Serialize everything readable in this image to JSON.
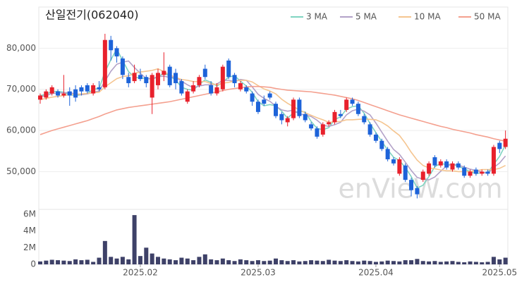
{
  "chart_data": [
    {
      "type": "candlestick",
      "title": "산일전기(062040)",
      "watermark": "enVieW.com",
      "up_color": "#e8212c",
      "down_color": "#1d63d9",
      "ylim": [
        41000,
        90000
      ],
      "yticks": [
        {
          "value": 50000,
          "label": "50,000"
        },
        {
          "value": 60000,
          "label": "60,000"
        },
        {
          "value": 70000,
          "label": "70,000"
        },
        {
          "value": 80000,
          "label": "80,000"
        }
      ],
      "grid": true,
      "ohlc": [
        [
          67500,
          69000,
          66500,
          68500
        ],
        [
          68000,
          70000,
          67500,
          69500
        ],
        [
          69000,
          71000,
          68500,
          70500
        ],
        [
          69500,
          70000,
          68000,
          68500
        ],
        [
          68500,
          73500,
          68000,
          69000
        ],
        [
          69500,
          70500,
          66000,
          68500
        ],
        [
          70000,
          71000,
          67000,
          68000
        ],
        [
          70500,
          71000,
          68500,
          69500
        ],
        [
          71000,
          71500,
          69000,
          69500
        ],
        [
          69000,
          71500,
          68500,
          71000
        ],
        [
          70500,
          72000,
          69500,
          70000
        ],
        [
          70500,
          83500,
          70000,
          82000
        ],
        [
          82000,
          83000,
          77000,
          79500
        ],
        [
          80000,
          80500,
          76500,
          78000
        ],
        [
          77500,
          78000,
          72500,
          73500
        ],
        [
          73000,
          74000,
          70500,
          71500
        ],
        [
          72000,
          76000,
          71500,
          74000
        ],
        [
          73500,
          75000,
          72000,
          72500
        ],
        [
          73000,
          73500,
          70500,
          71500
        ],
        [
          68000,
          74000,
          64000,
          73500
        ],
        [
          71000,
          75000,
          70000,
          74000
        ],
        [
          73500,
          79000,
          72000,
          74500
        ],
        [
          75500,
          76000,
          70500,
          71000
        ],
        [
          74000,
          75000,
          70000,
          71500
        ],
        [
          72000,
          72500,
          68500,
          69000
        ],
        [
          67000,
          70000,
          66500,
          69500
        ],
        [
          69500,
          72000,
          69000,
          71000
        ],
        [
          71000,
          73500,
          70500,
          73000
        ],
        [
          75000,
          76000,
          72500,
          73000
        ],
        [
          71000,
          72000,
          68500,
          69000
        ],
        [
          69000,
          71500,
          68500,
          70500
        ],
        [
          70000,
          76000,
          69500,
          75500
        ],
        [
          77000,
          77500,
          72500,
          73000
        ],
        [
          73500,
          74000,
          70500,
          71500
        ],
        [
          70000,
          72000,
          69500,
          71500
        ],
        [
          70500,
          71000,
          69000,
          69500
        ],
        [
          69000,
          69500,
          66000,
          67000
        ],
        [
          67000,
          67500,
          64000,
          64500
        ],
        [
          67500,
          68500,
          66000,
          66500
        ],
        [
          69000,
          69500,
          67500,
          68000
        ],
        [
          66500,
          67000,
          63000,
          63500
        ],
        [
          64000,
          64500,
          61500,
          62500
        ],
        [
          62000,
          63500,
          61000,
          63000
        ],
        [
          63000,
          68000,
          62500,
          67500
        ],
        [
          67500,
          68000,
          63000,
          63500
        ],
        [
          64000,
          64500,
          62000,
          62500
        ],
        [
          61500,
          62000,
          60000,
          60500
        ],
        [
          60500,
          61000,
          58000,
          58500
        ],
        [
          59000,
          62000,
          58500,
          61500
        ],
        [
          61500,
          62500,
          61000,
          62000
        ],
        [
          62000,
          65000,
          61500,
          64500
        ],
        [
          64000,
          65000,
          63000,
          63500
        ],
        [
          65000,
          68000,
          64500,
          67500
        ],
        [
          67500,
          68000,
          66000,
          66500
        ],
        [
          66500,
          67000,
          63500,
          64000
        ],
        [
          63500,
          64000,
          61500,
          62000
        ],
        [
          61500,
          62000,
          58500,
          59000
        ],
        [
          59000,
          59500,
          57000,
          57500
        ],
        [
          57500,
          58000,
          55000,
          55500
        ],
        [
          55500,
          56000,
          52500,
          53000
        ],
        [
          53000,
          53500,
          51500,
          52000
        ],
        [
          49500,
          53500,
          49000,
          53000
        ],
        [
          51500,
          52000,
          47500,
          48000
        ],
        [
          48000,
          48500,
          44000,
          45500
        ],
        [
          46000,
          46500,
          43500,
          44500
        ],
        [
          48000,
          50500,
          47500,
          50000
        ],
        [
          49500,
          52500,
          49000,
          52000
        ],
        [
          53500,
          54000,
          51000,
          51500
        ],
        [
          51500,
          53000,
          51000,
          52500
        ],
        [
          52500,
          53000,
          50500,
          51000
        ],
        [
          50500,
          52500,
          50000,
          52000
        ],
        [
          52000,
          52500,
          50500,
          51000
        ],
        [
          51000,
          51500,
          48500,
          49000
        ],
        [
          49000,
          50500,
          48500,
          50000
        ],
        [
          50500,
          51000,
          49000,
          49500
        ],
        [
          49500,
          50500,
          49000,
          50000
        ],
        [
          50000,
          50500,
          49000,
          49500
        ],
        [
          49500,
          56500,
          49000,
          56000
        ],
        [
          57000,
          57500,
          54500,
          55500
        ],
        [
          56000,
          60000,
          55500,
          58000
        ]
      ],
      "series": [
        {
          "name": "3 MA",
          "color": "#7fd4c1",
          "values": [
            68500,
            68800,
            69500,
            69500,
            69300,
            68700,
            68500,
            68700,
            69000,
            70000,
            70200,
            74300,
            77200,
            79800,
            77000,
            74300,
            73000,
            72700,
            72700,
            72500,
            73000,
            74000,
            73200,
            72300,
            70500,
            70000,
            69800,
            71200,
            72300,
            71700,
            70800,
            71700,
            73000,
            73300,
            72000,
            70800,
            69300,
            67000,
            66000,
            66300,
            66000,
            64700,
            63000,
            64300,
            64700,
            64500,
            62200,
            60500,
            60200,
            60700,
            62700,
            63300,
            65200,
            65800,
            66000,
            64200,
            61700,
            59500,
            57300,
            55300,
            53500,
            52700,
            51000,
            48800,
            46000,
            46700,
            48800,
            51200,
            52000,
            51700,
            51800,
            51300,
            50700,
            50000,
            49500,
            49800,
            49700,
            51800,
            53700,
            56500
          ]
        },
        {
          "name": "5 MA",
          "color": "#b3a2c8",
          "values": [
            68200,
            68500,
            69000,
            69100,
            69200,
            69200,
            68900,
            68700,
            68900,
            69300,
            69600,
            72000,
            74400,
            76100,
            76600,
            76900,
            75300,
            73900,
            72600,
            72600,
            73100,
            73200,
            72900,
            72900,
            72000,
            71100,
            70400,
            70800,
            71100,
            71100,
            71300,
            72200,
            72200,
            71900,
            72400,
            72200,
            70600,
            68800,
            67800,
            67100,
            65900,
            65000,
            64700,
            64900,
            64000,
            63800,
            63400,
            62500,
            61300,
            61000,
            61400,
            62000,
            63800,
            64800,
            65200,
            64700,
            63800,
            61800,
            59600,
            57400,
            55400,
            54200,
            52300,
            50300,
            48600,
            48200,
            48000,
            48700,
            50100,
            51400,
            51800,
            51600,
            51100,
            50600,
            50300,
            49900,
            49600,
            51000,
            52100,
            53800
          ]
        },
        {
          "name": "10 MA",
          "color": "#f5c590",
          "values": [
            67500,
            67800,
            68100,
            68300,
            68500,
            68700,
            68800,
            68900,
            69000,
            69200,
            69300,
            70600,
            71600,
            72600,
            73100,
            73300,
            73900,
            74200,
            74400,
            74600,
            75000,
            74300,
            73500,
            72900,
            72400,
            72200,
            71900,
            71900,
            71900,
            71400,
            71100,
            71500,
            71700,
            72000,
            72200,
            72200,
            71800,
            70900,
            70100,
            69600,
            68900,
            67600,
            66600,
            65800,
            65000,
            64300,
            63700,
            63100,
            62600,
            62000,
            62100,
            62200,
            62600,
            62600,
            62700,
            62800,
            62700,
            62600,
            62000,
            61100,
            59900,
            58800,
            56900,
            54700,
            52800,
            51500,
            50900,
            50700,
            50400,
            50200,
            50200,
            50000,
            50000,
            50000,
            50200,
            50500,
            50500,
            50500,
            50800,
            51500
          ]
        },
        {
          "name": "50 MA",
          "color": "#f4a08f",
          "values": [
            59000,
            59500,
            60000,
            60400,
            60800,
            61200,
            61600,
            62000,
            62400,
            62900,
            63400,
            64000,
            64500,
            65000,
            65300,
            65600,
            65800,
            66000,
            66200,
            66400,
            66600,
            66800,
            67000,
            67300,
            67600,
            67900,
            68200,
            68500,
            68800,
            69100,
            69400,
            69700,
            70000,
            70200,
            70400,
            70600,
            70700,
            70700,
            70600,
            70500,
            70200,
            70000,
            69800,
            69700,
            69600,
            69500,
            69400,
            69200,
            69000,
            68800,
            68600,
            68300,
            68000,
            67700,
            67300,
            66800,
            66300,
            65800,
            65300,
            64800,
            64300,
            63800,
            63400,
            63000,
            62600,
            62200,
            61800,
            61400,
            61000,
            60700,
            60300,
            60000,
            59700,
            59400,
            59000,
            58700,
            58400,
            58000,
            57700,
            57400
          ]
        }
      ]
    },
    {
      "type": "bar",
      "color": "#3e4168",
      "ylim": [
        0,
        6500000
      ],
      "yticks": [
        0,
        {
          "value": 2000000,
          "label": "2M"
        },
        {
          "value": 4000000,
          "label": "4M"
        },
        {
          "value": 6000000,
          "label": "6M"
        }
      ],
      "categories": [
        null,
        null,
        null,
        null,
        null,
        null,
        null,
        null,
        null,
        null,
        null,
        null,
        null,
        null,
        null,
        null,
        null,
        "2025.02",
        null,
        null,
        null,
        null,
        null,
        null,
        null,
        null,
        null,
        null,
        null,
        null,
        null,
        null,
        null,
        null,
        null,
        null,
        null,
        "2025.03",
        null,
        null,
        null,
        null,
        null,
        null,
        null,
        null,
        null,
        null,
        null,
        null,
        null,
        null,
        null,
        null,
        null,
        null,
        null,
        "2025.04",
        null,
        null,
        null,
        null,
        null,
        null,
        null,
        null,
        null,
        null,
        null,
        null,
        null,
        null,
        null,
        null,
        null,
        null,
        null,
        null,
        "2025.05",
        null
      ],
      "values": [
        350000,
        450000,
        550000,
        500000,
        450000,
        400000,
        600000,
        500000,
        550000,
        300000,
        800000,
        2800000,
        900000,
        700000,
        900000,
        600000,
        5900000,
        1000000,
        2000000,
        1300000,
        900000,
        700000,
        600000,
        500000,
        800000,
        700000,
        500000,
        900000,
        1200000,
        600000,
        500000,
        700000,
        500000,
        400000,
        600000,
        500000,
        400000,
        500000,
        400000,
        450000,
        700000,
        500000,
        400000,
        500000,
        350000,
        400000,
        500000,
        450000,
        400000,
        550000,
        450000,
        400000,
        500000,
        400000,
        350000,
        450000,
        400000,
        300000,
        350000,
        450000,
        400000,
        350000,
        500000,
        500000,
        650000,
        400000,
        350000,
        400000,
        300000,
        350000,
        400000,
        300000,
        250000,
        350000,
        300000,
        250000,
        300000,
        900000,
        600000,
        800000
      ]
    }
  ]
}
